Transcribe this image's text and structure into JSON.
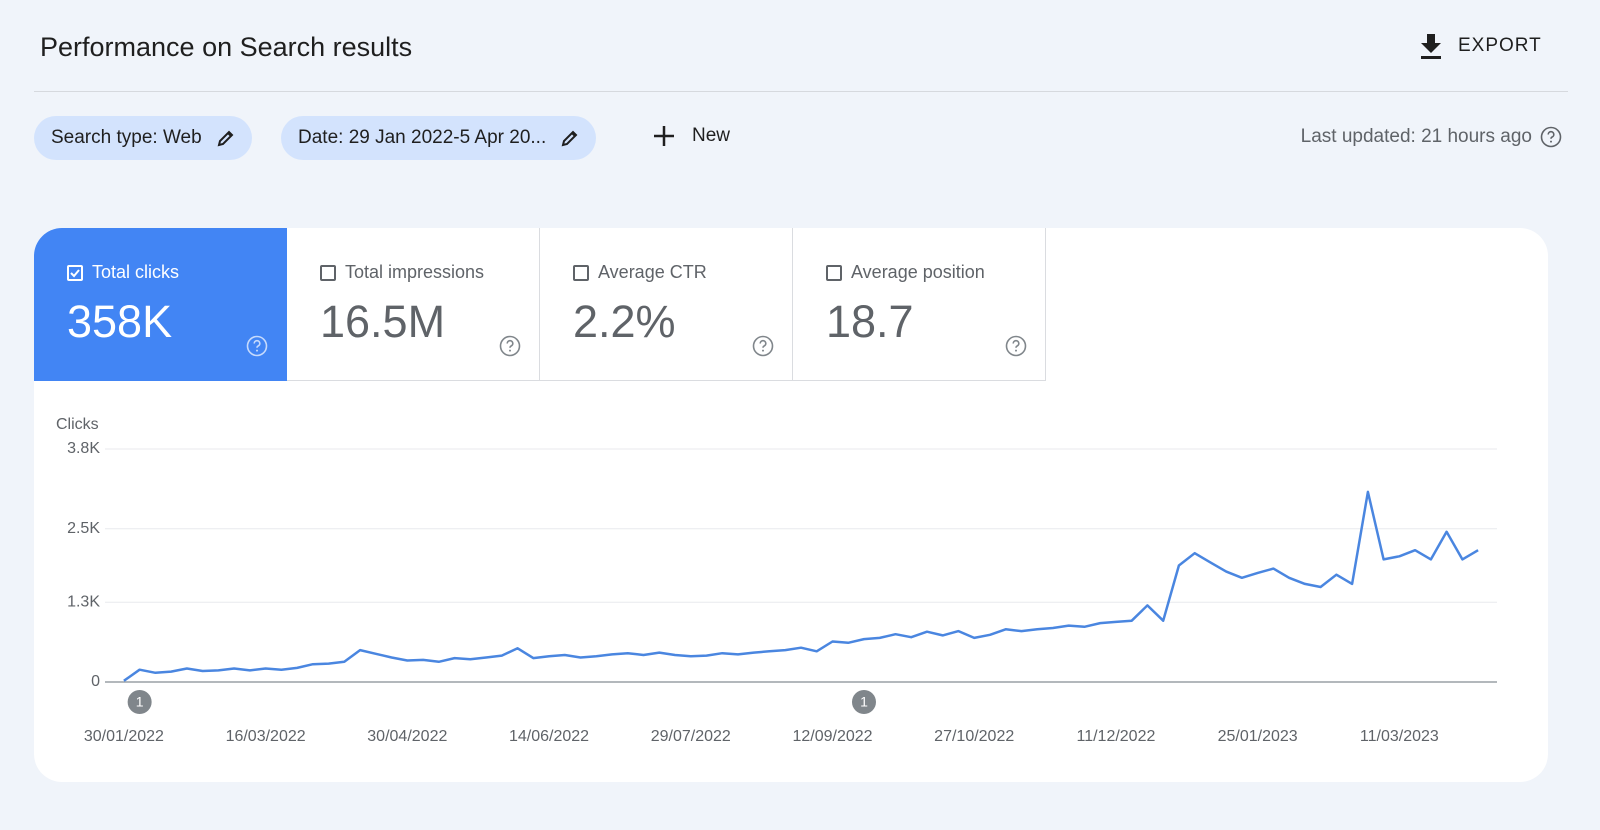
{
  "header": {
    "title": "Performance on Search results",
    "export": "EXPORT"
  },
  "filters": {
    "chips": [
      "Search type: Web",
      "Date: 29 Jan 2022-5 Apr 20..."
    ],
    "new": "New",
    "last_updated": "Last updated: 21 hours ago"
  },
  "metrics": [
    {
      "label": "Total clicks",
      "value": "358K",
      "selected": true
    },
    {
      "label": "Total impressions",
      "value": "16.5M",
      "selected": false
    },
    {
      "label": "Average CTR",
      "value": "2.2%",
      "selected": false
    },
    {
      "label": "Average position",
      "value": "18.7",
      "selected": false
    }
  ],
  "chart_data": {
    "type": "line",
    "ylabel": "Clicks",
    "color": "#4a86e0",
    "x": [
      "30/01/2022",
      "04/02/2022",
      "09/02/2022",
      "14/02/2022",
      "19/02/2022",
      "24/02/2022",
      "01/03/2022",
      "06/03/2022",
      "11/03/2022",
      "16/03/2022",
      "21/03/2022",
      "26/03/2022",
      "31/03/2022",
      "05/04/2022",
      "10/04/2022",
      "15/04/2022",
      "20/04/2022",
      "25/04/2022",
      "30/04/2022",
      "05/05/2022",
      "10/05/2022",
      "15/05/2022",
      "20/05/2022",
      "25/05/2022",
      "30/05/2022",
      "04/06/2022",
      "09/06/2022",
      "14/06/2022",
      "19/06/2022",
      "24/06/2022",
      "29/06/2022",
      "04/07/2022",
      "09/07/2022",
      "14/07/2022",
      "19/07/2022",
      "24/07/2022",
      "29/07/2022",
      "03/08/2022",
      "08/08/2022",
      "13/08/2022",
      "18/08/2022",
      "23/08/2022",
      "28/08/2022",
      "02/09/2022",
      "07/09/2022",
      "12/09/2022",
      "17/09/2022",
      "22/09/2022",
      "27/09/2022",
      "02/10/2022",
      "07/10/2022",
      "12/10/2022",
      "17/10/2022",
      "22/10/2022",
      "27/10/2022",
      "01/11/2022",
      "06/11/2022",
      "11/11/2022",
      "16/11/2022",
      "21/11/2022",
      "26/11/2022",
      "01/12/2022",
      "06/12/2022",
      "11/12/2022",
      "16/12/2022",
      "21/12/2022",
      "26/12/2022",
      "31/12/2022",
      "05/01/2023",
      "10/01/2023",
      "15/01/2023",
      "20/01/2023",
      "25/01/2023",
      "30/01/2023",
      "04/02/2023",
      "09/02/2023",
      "14/02/2023",
      "19/02/2023",
      "24/02/2023",
      "01/03/2023",
      "06/03/2023",
      "11/03/2023",
      "16/03/2023",
      "21/03/2023",
      "26/03/2023",
      "31/03/2023",
      "05/04/2023"
    ],
    "values": [
      20,
      200,
      150,
      170,
      220,
      180,
      190,
      220,
      190,
      220,
      200,
      230,
      290,
      300,
      330,
      520,
      460,
      400,
      350,
      360,
      330,
      390,
      370,
      400,
      430,
      550,
      390,
      420,
      440,
      400,
      420,
      450,
      470,
      440,
      480,
      440,
      420,
      430,
      470,
      450,
      480,
      500,
      520,
      560,
      500,
      660,
      640,
      700,
      720,
      780,
      730,
      820,
      760,
      830,
      720,
      770,
      860,
      830,
      860,
      880,
      920,
      900,
      960,
      980,
      1000,
      1250,
      1000,
      1900,
      2100,
      1950,
      1800,
      1700,
      1780,
      1850,
      1700,
      1600,
      1550,
      1750,
      1600,
      3100,
      2000,
      2050,
      2150,
      2000,
      2450,
      2000,
      2150
    ],
    "xlim": [
      "24/01/2022",
      "11/04/2023"
    ],
    "xticks": [
      "30/01/2022",
      "16/03/2022",
      "30/04/2022",
      "14/06/2022",
      "29/07/2022",
      "12/09/2022",
      "27/10/2022",
      "11/12/2022",
      "25/01/2023",
      "11/03/2023"
    ],
    "ylim": [
      0,
      3800
    ],
    "yticks": [
      0,
      {
        "value": 1300,
        "label": "1.3K"
      },
      {
        "value": 2500,
        "label": "2.5K"
      },
      {
        "value": 3800,
        "label": "3.8K"
      }
    ],
    "grid": true,
    "annotations": [
      {
        "x": "04/02/2022",
        "text": "1"
      },
      {
        "x": "22/09/2022",
        "text": "1"
      }
    ]
  }
}
